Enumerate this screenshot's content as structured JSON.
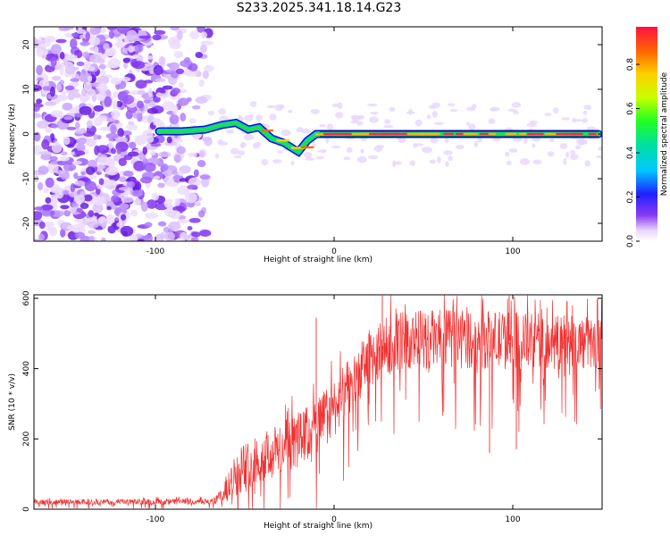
{
  "title": "S233.2025.341.18.14.G23",
  "chart_data": [
    {
      "type": "heatmap",
      "name": "spectrogram",
      "xlabel": "Height of straight line (km)",
      "ylabel": "Frequency (Hz)",
      "xlim": [
        -168,
        150
      ],
      "ylim": [
        -24,
        24
      ],
      "xticks": [
        -100,
        0,
        100
      ],
      "yticks": [
        -20,
        -10,
        0,
        10,
        20
      ],
      "colorbar": {
        "label": "Normalized spectral amplitude",
        "range": [
          0,
          0.97
        ],
        "ticks": [
          0,
          0.2,
          0.4,
          0.6,
          0.8
        ]
      },
      "noise_region_x": [
        -168,
        -70
      ],
      "tone_track": [
        {
          "x": -98,
          "f": 0.6,
          "amp": 0.3
        },
        {
          "x": -85,
          "f": 0.6,
          "amp": 0.3
        },
        {
          "x": -72,
          "f": 1.0,
          "amp": 0.4
        },
        {
          "x": -63,
          "f": 2.0,
          "amp": 0.4
        },
        {
          "x": -55,
          "f": 2.5,
          "amp": 0.45
        },
        {
          "x": -48,
          "f": 1.0,
          "amp": 0.45
        },
        {
          "x": -42,
          "f": 1.5,
          "amp": 0.45
        },
        {
          "x": -35,
          "f": -1.0,
          "amp": 0.55
        },
        {
          "x": -28,
          "f": -2.0,
          "amp": 0.6
        },
        {
          "x": -20,
          "f": -4.0,
          "amp": 0.55
        },
        {
          "x": -15,
          "f": -1.5,
          "amp": 0.65
        },
        {
          "x": -10,
          "f": 0.0,
          "amp": 0.9
        },
        {
          "x": 0,
          "f": 0.0,
          "amp": 0.9
        },
        {
          "x": 50,
          "f": 0.0,
          "amp": 0.9
        },
        {
          "x": 100,
          "f": 0.0,
          "amp": 0.9
        },
        {
          "x": 148,
          "f": 0.0,
          "amp": 0.9
        }
      ]
    },
    {
      "type": "line",
      "name": "snr",
      "xlabel": "Height of straight line (km)",
      "ylabel": "SNR (10 * v/v)",
      "xlim": [
        -168,
        150
      ],
      "ylim": [
        0,
        610
      ],
      "xticks": [
        -100,
        0,
        100
      ],
      "yticks": [
        0,
        200,
        400,
        600
      ],
      "color": "#f03030",
      "envelope": [
        {
          "x": -168,
          "mean": 20,
          "spread": 10
        },
        {
          "x": -68,
          "mean": 22,
          "spread": 12
        },
        {
          "x": -62,
          "mean": 40,
          "spread": 30
        },
        {
          "x": -55,
          "mean": 100,
          "spread": 90
        },
        {
          "x": -45,
          "mean": 140,
          "spread": 100
        },
        {
          "x": -30,
          "mean": 170,
          "spread": 110
        },
        {
          "x": -12,
          "mean": 220,
          "spread": 120
        },
        {
          "x": 0,
          "mean": 290,
          "spread": 120
        },
        {
          "x": 10,
          "mean": 360,
          "spread": 110
        },
        {
          "x": 20,
          "mean": 430,
          "spread": 120
        },
        {
          "x": 35,
          "mean": 480,
          "spread": 120
        },
        {
          "x": 60,
          "mean": 485,
          "spread": 120
        },
        {
          "x": 100,
          "mean": 480,
          "spread": 120
        },
        {
          "x": 150,
          "mean": 470,
          "spread": 110
        }
      ],
      "spikes": [
        {
          "x": -10,
          "y": 545
        },
        {
          "x": 27,
          "y": 610
        },
        {
          "x": 98,
          "y": 615
        },
        {
          "x": 102,
          "y": 170
        },
        {
          "x": 87,
          "y": 160
        }
      ]
    }
  ]
}
